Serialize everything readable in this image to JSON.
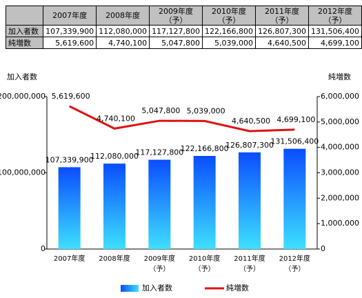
{
  "table": {
    "header": [
      "2007年度",
      "2008年度",
      "2009年度\n（予）",
      "2010年度\n（予）",
      "2011年度\n（予）",
      "2012年度\n（予）"
    ],
    "rows": [
      {
        "label": "加入者数",
        "cells": [
          "107,339,900",
          "112,080,000",
          "117,127,800",
          "122,166,800",
          "126,807,300",
          "131,506,400"
        ]
      },
      {
        "label": "純増数",
        "cells": [
          "5,619,600",
          "4,740,100",
          "5,047,800",
          "5,039,000",
          "4,640,500",
          "4,699,100"
        ]
      }
    ]
  },
  "chart_data": {
    "type": "bar-line",
    "y_label": "加入者数",
    "y2_label": "純増数",
    "categories": [
      "2007年度",
      "2008年度",
      "2009年度\n（予）",
      "2010年度\n（予）",
      "2011年度\n（予）",
      "2012年度\n（予）"
    ],
    "ylim": [
      0,
      200000000
    ],
    "yticks": [
      0,
      {
        "value": 100000000,
        "label": "100,000,000"
      },
      {
        "value": 200000000,
        "label": "200,000,000"
      }
    ],
    "y2lim": [
      0,
      6000000
    ],
    "y2ticks": [
      0,
      {
        "value": 1000000,
        "label": "1,000,000"
      },
      {
        "value": 2000000,
        "label": "2,000,000"
      },
      {
        "value": 3000000,
        "label": "3,000,000"
      },
      {
        "value": 4000000,
        "label": "4,000,000"
      },
      {
        "value": 5000000,
        "label": "5,000,000"
      },
      {
        "value": 6000000,
        "label": "6,000,000"
      }
    ],
    "series": [
      {
        "name": "加入者数",
        "type": "bar",
        "color": "#1a6cff",
        "values": [
          107339900,
          112080000,
          117127800,
          122166800,
          126807300,
          131506400
        ],
        "value_labels": [
          "107,339,900",
          "112,080,000",
          "117,127,800",
          "122,166,800",
          "126,807,300",
          "131,506,400"
        ]
      },
      {
        "name": "純増数",
        "type": "line",
        "axis": "y2",
        "color": "#e01010",
        "values": [
          5619600,
          4740100,
          5047800,
          5039000,
          4640500,
          4699100
        ],
        "value_labels": [
          "5,619,600",
          "4,740,100",
          "5,047,800",
          "5,039,000",
          "4,640,500",
          "4,699,100"
        ]
      }
    ]
  }
}
